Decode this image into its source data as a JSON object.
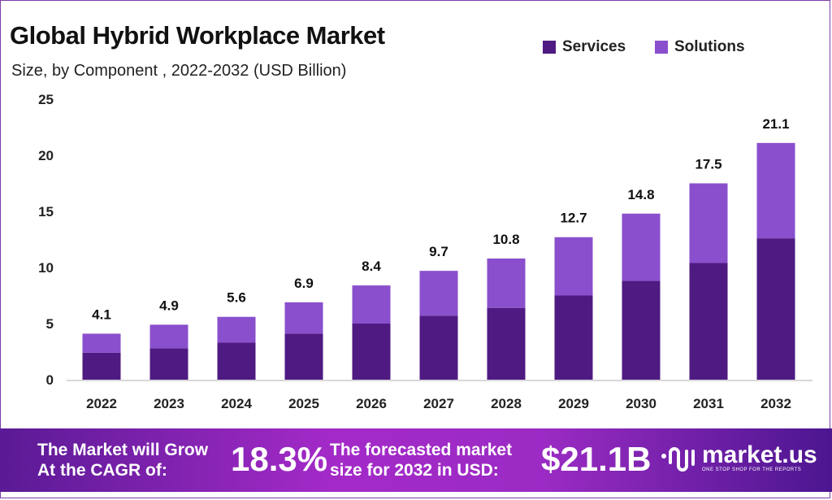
{
  "chart_data": {
    "type": "bar",
    "stacked": true,
    "title": "Global Hybrid Workplace Market",
    "subtitle": "Size, by Component , 2022-2032 (USD Billion)",
    "categories": [
      "2022",
      "2023",
      "2024",
      "2025",
      "2026",
      "2027",
      "2028",
      "2029",
      "2030",
      "2031",
      "2032"
    ],
    "series": [
      {
        "name": "Services",
        "color": "#4f1a82",
        "values": [
          2.4,
          2.8,
          3.3,
          4.1,
          5.0,
          5.7,
          6.4,
          7.5,
          8.8,
          10.4,
          12.6
        ]
      },
      {
        "name": "Solutions",
        "color": "#8a4fcc",
        "values": [
          1.7,
          2.1,
          2.3,
          2.8,
          3.4,
          4.0,
          4.4,
          5.2,
          6.0,
          7.1,
          8.5
        ]
      }
    ],
    "totals": [
      "4.1",
      "4.9",
      "5.6",
      "6.9",
      "8.4",
      "9.7",
      "10.8",
      "12.7",
      "14.8",
      "17.5",
      "21.1"
    ],
    "ylim": [
      0,
      25
    ],
    "yticks": [
      "0",
      "5",
      "10",
      "15",
      "20",
      "25"
    ],
    "grid": false,
    "legend": "top-right"
  },
  "footer": {
    "cagr_label_1": "The Market will Grow",
    "cagr_label_2": "At the CAGR of:",
    "cagr_value": "18.3%",
    "forecast_label_1": "The forecasted market",
    "forecast_label_2": "size for 2032 in USD:",
    "forecast_value": "$21.1B",
    "logo_name": "market.us",
    "logo_tagline": "ONE STOP SHOP FOR THE REPORTS"
  }
}
